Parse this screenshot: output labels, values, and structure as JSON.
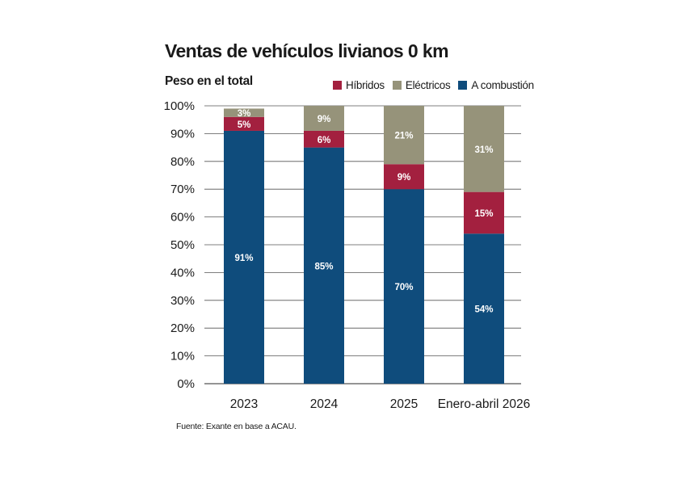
{
  "header": {
    "title": "Ventas de vehículos livianos 0 km",
    "subtitle": "Peso en el total"
  },
  "legend": [
    {
      "label": "Híbridos",
      "color": "#a3203f"
    },
    {
      "label": "Eléctricos",
      "color": "#96937a"
    },
    {
      "label": "A combustión",
      "color": "#0f4c7c"
    }
  ],
  "source": "Fuente: Exante en base a ACAU.",
  "chart_data": {
    "type": "bar",
    "stacked": true,
    "categories": [
      "2023",
      "2024",
      "2025",
      "Enero-abril 2026"
    ],
    "series": [
      {
        "name": "A combustión",
        "color": "#0f4c7c",
        "values": [
          91,
          85,
          70,
          54
        ],
        "labels": [
          "91%",
          "85%",
          "70%",
          "54%"
        ]
      },
      {
        "name": "Híbridos",
        "color": "#a3203f",
        "values": [
          5,
          6,
          9,
          15
        ],
        "labels": [
          "5%",
          "6%",
          "9%",
          "15%"
        ]
      },
      {
        "name": "Eléctricos",
        "color": "#96937a",
        "values": [
          3,
          9,
          21,
          31
        ],
        "labels": [
          "3%",
          "9%",
          "21%",
          "31%"
        ]
      }
    ],
    "yticks": [
      "0%",
      "10%",
      "20%",
      "30%",
      "40%",
      "50%",
      "60%",
      "70%",
      "80%",
      "90%",
      "100%"
    ],
    "ylim": [
      0,
      100
    ],
    "grid": true,
    "legend_position": "top-right"
  }
}
